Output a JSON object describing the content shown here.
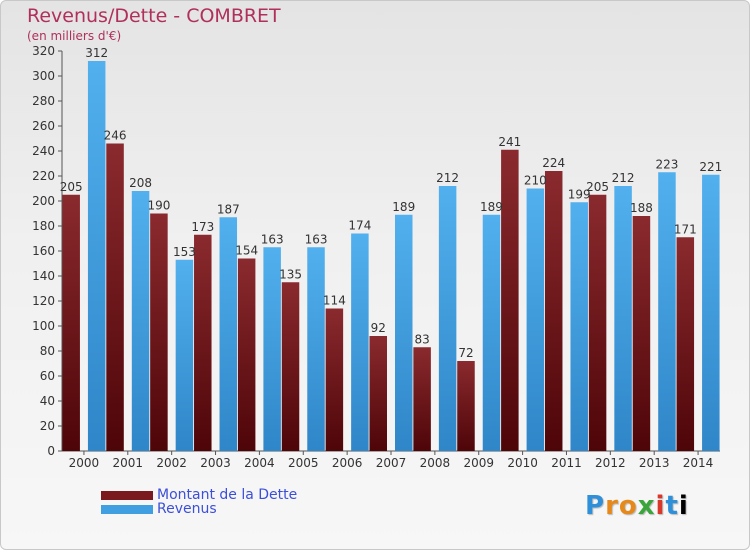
{
  "title": "Revenus/Dette - COMBRET",
  "subtitle": "(en milliers d'€)",
  "logo": "Proxiti",
  "colors": {
    "dette": "#7a1a1f",
    "revenus": "#3f9fe0",
    "title": "#b0305a",
    "legend_text": "#3c4fd8"
  },
  "chart_data": {
    "type": "bar",
    "title": "Revenus/Dette - COMBRET",
    "ylabel": "(en milliers d'€)",
    "ylim": [
      0,
      320
    ],
    "yticks": [
      0,
      20,
      40,
      60,
      80,
      100,
      120,
      140,
      160,
      180,
      200,
      220,
      240,
      260,
      280,
      300,
      320
    ],
    "grid": false,
    "legend_position": "bottom-left",
    "categories": [
      "2000",
      "2001",
      "2002",
      "2003",
      "2004",
      "2005",
      "2006",
      "2007",
      "2008",
      "2009",
      "2010",
      "2011",
      "2012",
      "2013",
      "2014"
    ],
    "series": [
      {
        "name": "Montant de la Dette",
        "color": "#7a1a1f",
        "values": [
          205,
          246,
          190,
          173,
          154,
          135,
          114,
          92,
          83,
          72,
          241,
          224,
          205,
          188,
          171
        ]
      },
      {
        "name": "Revenus",
        "color": "#3f9fe0",
        "values": [
          312,
          208,
          153,
          187,
          163,
          163,
          174,
          189,
          212,
          189,
          210,
          199,
          212,
          223,
          221
        ]
      }
    ]
  }
}
